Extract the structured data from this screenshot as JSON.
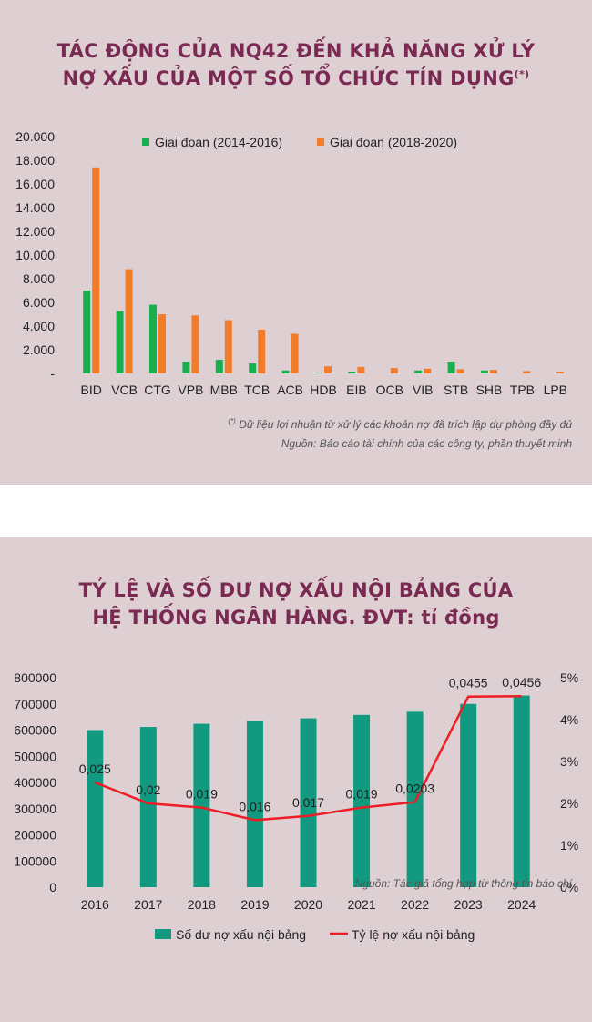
{
  "chart1": {
    "title_line1": "TÁC ĐỘNG CỦA NQ42 ĐẾN KHẢ NĂNG XỬ LÝ",
    "title_line2": "NỢ XẤU CỦA MỘT SỐ TỔ CHỨC TÍN DỤNG",
    "title_mark": "(*)",
    "note_mark": "(*)",
    "note_text": " Dữ liệu lợi nhuận từ xử lý các khoản nợ đã trích lập dự phòng đầy đủ",
    "source": "Nguồn: Báo cáo tài chính của các công ty, phần thuyết minh",
    "colors": {
      "series1": "#1aae4f",
      "series2": "#f07c2c"
    }
  },
  "chart2": {
    "title_line1": "TỶ LỆ VÀ SỐ DƯ NỢ XẤU NỘI BẢNG CỦA",
    "title_line2": "HỆ THỐNG NGÂN HÀNG. ĐVT: tỉ đồng",
    "source": "Nguồn: Tác giả tổng hợp từ thông tin báo chí",
    "colors": {
      "bar": "#129a80",
      "line": "#ee1c24"
    }
  },
  "chart_data": [
    {
      "type": "bar",
      "categories": [
        "BID",
        "VCB",
        "CTG",
        "VPB",
        "MBB",
        "TCB",
        "ACB",
        "HDB",
        "EIB",
        "OCB",
        "VIB",
        "STB",
        "SHB",
        "TPB",
        "LPB"
      ],
      "series": [
        {
          "name": "Giai đoạn (2014-2016)",
          "values": [
            7000,
            5300,
            5800,
            1000,
            1150,
            850,
            250,
            50,
            150,
            0,
            250,
            1000,
            250,
            0,
            0
          ]
        },
        {
          "name": "Giai đoạn (2018-2020)",
          "values": [
            17400,
            8800,
            5000,
            4900,
            4500,
            3700,
            3350,
            600,
            550,
            450,
            400,
            350,
            300,
            200,
            150
          ]
        }
      ],
      "yticks": [
        "20.000",
        "18.000",
        "16.000",
        "14.000",
        "12.000",
        "10.000",
        "8.000",
        "6.000",
        "4.000",
        "2.000",
        "-"
      ],
      "ylim": [
        0,
        20000
      ],
      "legend": "top"
    },
    {
      "type": "bar",
      "categories": [
        "2016",
        "2017",
        "2018",
        "2019",
        "2020",
        "2021",
        "2022",
        "2023",
        "2024"
      ],
      "series": [
        {
          "name": "Số dư nợ xấu nội bảng",
          "type": "bar",
          "axis": "left",
          "values": [
            600000,
            612000,
            624000,
            634000,
            645000,
            658000,
            670000,
            700000,
            732000
          ]
        },
        {
          "name": "Tỷ lệ nợ xấu nội bảng",
          "type": "line",
          "axis": "right",
          "values": [
            0.025,
            0.02,
            0.019,
            0.016,
            0.017,
            0.019,
            0.0203,
            0.0455,
            0.0456
          ],
          "labels": [
            "0,025",
            "0,02",
            "0,019",
            "0,016",
            "0,017",
            "0,019",
            "0,0203",
            "0,0455",
            "0,0456"
          ]
        }
      ],
      "yticks_left": [
        "800000",
        "700000",
        "600000",
        "500000",
        "400000",
        "300000",
        "200000",
        "100000",
        "0"
      ],
      "yticks_right": [
        "5%",
        "4%",
        "3%",
        "2%",
        "1%",
        "0%"
      ],
      "ylim_left": [
        0,
        800000
      ],
      "ylim_right": [
        0,
        0.05
      ],
      "legend": "bottom"
    }
  ]
}
